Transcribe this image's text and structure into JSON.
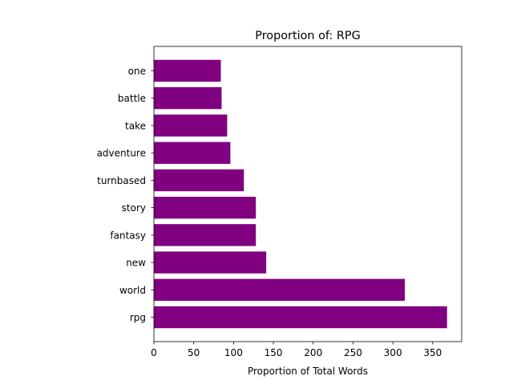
{
  "chart_data": {
    "type": "bar",
    "orientation": "horizontal",
    "title": "Proportion of: RPG",
    "xlabel": "Proportion of Total Words",
    "ylabel": "",
    "categories": [
      "rpg",
      "world",
      "new",
      "fantasy",
      "story",
      "turnbased",
      "adventure",
      "take",
      "battle",
      "one"
    ],
    "values": [
      368,
      315,
      141,
      128,
      128,
      113,
      96,
      92,
      85,
      84
    ],
    "xlim": [
      0,
      386.4
    ],
    "xticks": [
      0,
      50,
      100,
      150,
      200,
      250,
      300,
      350
    ],
    "grid": false,
    "legend": "none",
    "bar_color": "#800080"
  }
}
